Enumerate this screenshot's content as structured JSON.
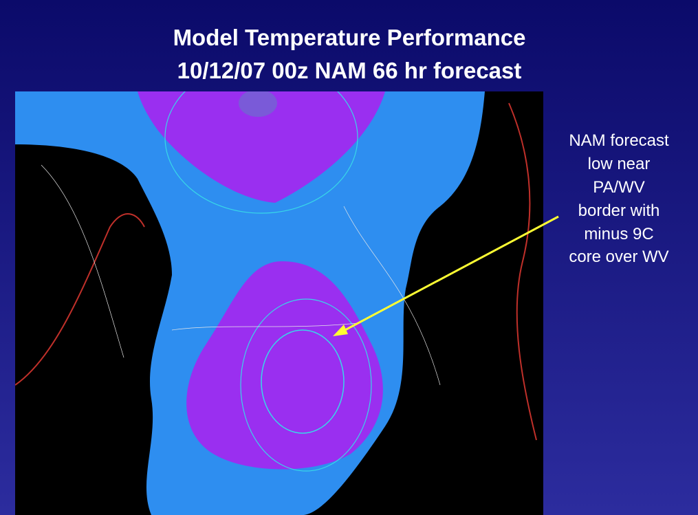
{
  "slide": {
    "title": [
      "Model Temperature Performance",
      "10/12/07 00z NAM 66 hr forecast"
    ],
    "annotation": [
      "NAM forecast",
      "low near",
      "PA/WV",
      "border with",
      "minus 9C",
      "core over WV"
    ]
  }
}
